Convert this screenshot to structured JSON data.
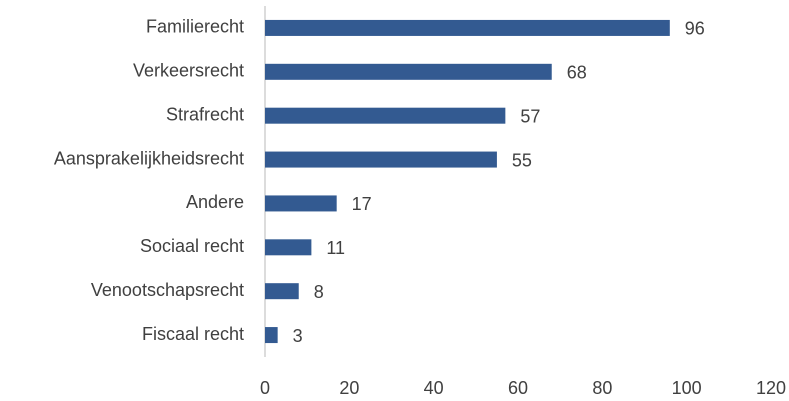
{
  "chart_data": {
    "type": "bar",
    "orientation": "horizontal",
    "categories": [
      "Familierecht",
      "Verkeersrecht",
      "Strafrecht",
      "Aansprakelijkheidsrecht",
      "Andere",
      "Sociaal recht",
      "Venootschapsrecht",
      "Fiscaal recht"
    ],
    "values": [
      96,
      68,
      57,
      55,
      17,
      11,
      8,
      3
    ],
    "color": "#335a91",
    "xlim": [
      0,
      120
    ],
    "xticks": [
      0,
      20,
      40,
      60,
      80,
      100,
      120
    ],
    "grid": false
  }
}
